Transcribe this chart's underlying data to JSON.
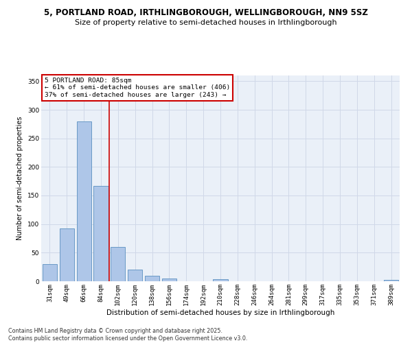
{
  "title1": "5, PORTLAND ROAD, IRTHLINGBOROUGH, WELLINGBOROUGH, NN9 5SZ",
  "title2": "Size of property relative to semi-detached houses in Irthlingborough",
  "xlabel": "Distribution of semi-detached houses by size in Irthlingborough",
  "ylabel": "Number of semi-detached properties",
  "categories": [
    "31sqm",
    "49sqm",
    "66sqm",
    "84sqm",
    "102sqm",
    "120sqm",
    "138sqm",
    "156sqm",
    "174sqm",
    "192sqm",
    "210sqm",
    "228sqm",
    "246sqm",
    "264sqm",
    "281sqm",
    "299sqm",
    "317sqm",
    "335sqm",
    "353sqm",
    "371sqm",
    "389sqm"
  ],
  "values": [
    30,
    93,
    280,
    167,
    60,
    20,
    10,
    5,
    0,
    0,
    4,
    0,
    0,
    0,
    0,
    0,
    0,
    0,
    0,
    0,
    3
  ],
  "bar_color": "#aec6e8",
  "bar_edge_color": "#5a8fc0",
  "grid_color": "#d0d8e8",
  "bg_color": "#eaf0f8",
  "vline_color": "#cc0000",
  "vline_x_index": 3,
  "annotation_text_line1": "5 PORTLAND ROAD: 85sqm",
  "annotation_text_line2": "← 61% of semi-detached houses are smaller (406)",
  "annotation_text_line3": "37% of semi-detached houses are larger (243) →",
  "footer": "Contains HM Land Registry data © Crown copyright and database right 2025.\nContains public sector information licensed under the Open Government Licence v3.0.",
  "ylim": [
    0,
    360
  ],
  "yticks": [
    0,
    50,
    100,
    150,
    200,
    250,
    300,
    350
  ],
  "title1_fontsize": 8.5,
  "title2_fontsize": 8.0,
  "xlabel_fontsize": 7.5,
  "ylabel_fontsize": 7.0,
  "tick_fontsize": 6.5,
  "annot_fontsize": 6.8,
  "footer_fontsize": 5.8
}
